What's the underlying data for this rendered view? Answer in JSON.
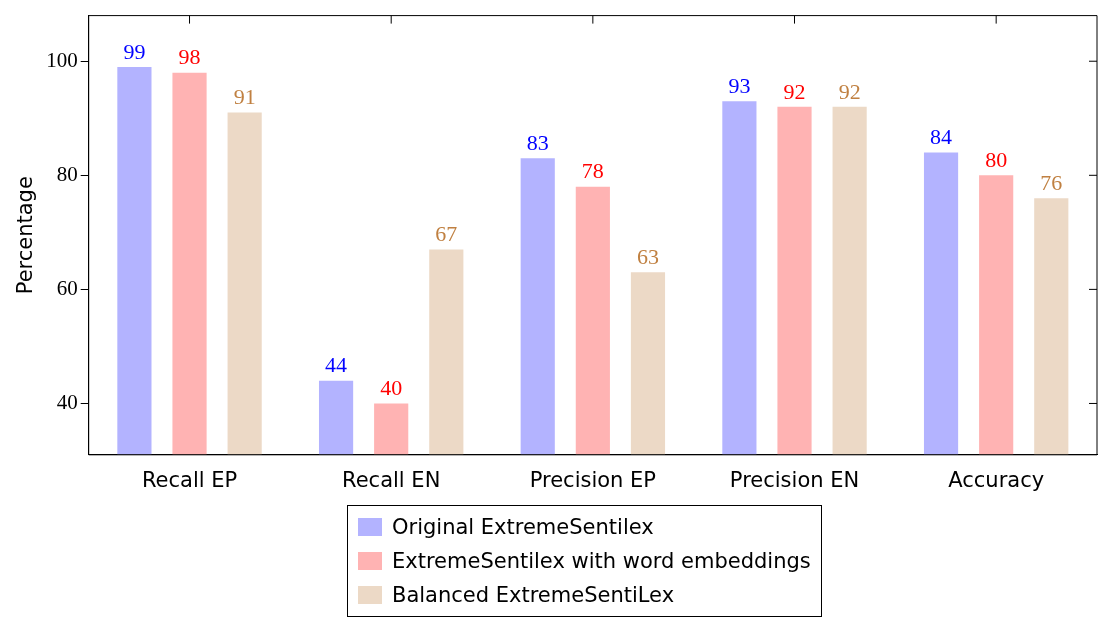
{
  "chart_data": {
    "type": "bar",
    "ylabel": "Percentage",
    "categories": [
      "Recall EP",
      "Recall EN",
      "Precision EP",
      "Precision EN",
      "Accuracy"
    ],
    "series": [
      {
        "name": "Original ExtremeSentilex",
        "color": "#b3b3ff",
        "values": [
          99,
          44,
          83,
          93,
          84
        ]
      },
      {
        "name": "ExtremeSentilex with word embeddings",
        "color": "#ffb3b3",
        "values": [
          98,
          40,
          78,
          92,
          80
        ]
      },
      {
        "name": "Balanced ExtremeSentiLex",
        "color": "#ecd9c6",
        "values": [
          91,
          67,
          63,
          92,
          76
        ]
      }
    ],
    "ylim": [
      31,
      108
    ],
    "yticks": [
      40,
      60,
      80,
      100
    ],
    "grid": false,
    "legend": "bottom",
    "data_labels": true
  }
}
